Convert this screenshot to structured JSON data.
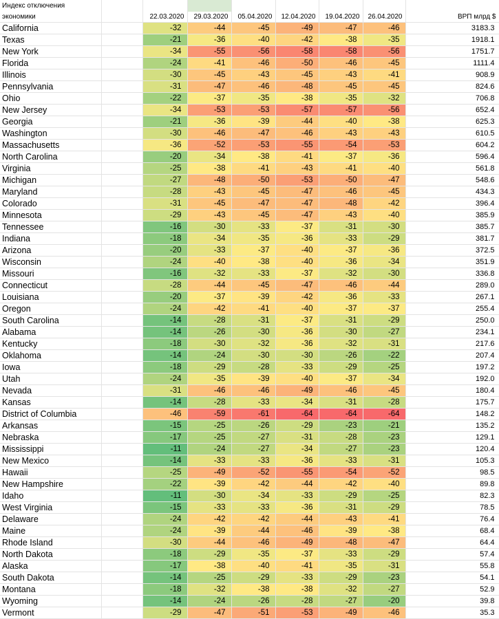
{
  "header": {
    "title_line1": "Индекс отключения",
    "title_line2": "экономики",
    "dates": [
      "22.03.2020",
      "29.03.2020",
      "05.04.2020",
      "12.04.2020",
      "19.04.2020",
      "26.04.2020"
    ],
    "gdp_label": "ВРП млрд $"
  },
  "rows": [
    {
      "state": "California",
      "values": [
        -32,
        -44,
        -45,
        -49,
        -47,
        -46
      ],
      "gdp": "3183.3"
    },
    {
      "state": "Texas",
      "values": [
        -21,
        -36,
        -40,
        -42,
        -38,
        -35
      ],
      "gdp": "1918.1"
    },
    {
      "state": "New York",
      "values": [
        -34,
        -55,
        -56,
        -58,
        -58,
        -56
      ],
      "gdp": "1751.7"
    },
    {
      "state": "Florida",
      "values": [
        -24,
        -41,
        -46,
        -50,
        -46,
        -45
      ],
      "gdp": "1111.4"
    },
    {
      "state": "Illinois",
      "values": [
        -30,
        -45,
        -43,
        -45,
        -43,
        -41
      ],
      "gdp": "908.9"
    },
    {
      "state": "Pennsylvania",
      "values": [
        -31,
        -47,
        -46,
        -48,
        -45,
        -45
      ],
      "gdp": "824.6"
    },
    {
      "state": "Ohio",
      "values": [
        -22,
        -37,
        -35,
        -38,
        -35,
        -32
      ],
      "gdp": "706.8"
    },
    {
      "state": "New Jersey",
      "values": [
        -34,
        -53,
        -53,
        -57,
        -57,
        -56
      ],
      "gdp": "652.4"
    },
    {
      "state": "Georgia",
      "values": [
        -21,
        -36,
        -39,
        -44,
        -40,
        -38
      ],
      "gdp": "625.3"
    },
    {
      "state": "Washington",
      "values": [
        -30,
        -46,
        -47,
        -46,
        -43,
        -43
      ],
      "gdp": "610.5"
    },
    {
      "state": "Massachusetts",
      "values": [
        -36,
        -52,
        -53,
        -55,
        -54,
        -53
      ],
      "gdp": "604.2"
    },
    {
      "state": "North Carolina",
      "values": [
        -20,
        -34,
        -38,
        -41,
        -37,
        -36
      ],
      "gdp": "596.4"
    },
    {
      "state": "Virginia",
      "values": [
        -25,
        -38,
        -41,
        -43,
        -41,
        -40
      ],
      "gdp": "561.8"
    },
    {
      "state": "Michigan",
      "values": [
        -27,
        -48,
        -50,
        -53,
        -50,
        -47
      ],
      "gdp": "548.6"
    },
    {
      "state": "Maryland",
      "values": [
        -28,
        -43,
        -45,
        -47,
        -46,
        -45
      ],
      "gdp": "434.3"
    },
    {
      "state": "Colorado",
      "values": [
        -31,
        -45,
        -47,
        -47,
        -48,
        -42
      ],
      "gdp": "396.4"
    },
    {
      "state": "Minnesota",
      "values": [
        -29,
        -43,
        -45,
        -47,
        -43,
        -40
      ],
      "gdp": "385.9"
    },
    {
      "state": "Tennessee",
      "values": [
        -16,
        -30,
        -33,
        -37,
        -31,
        -30
      ],
      "gdp": "385.7"
    },
    {
      "state": "Indiana",
      "values": [
        -18,
        -34,
        -35,
        -36,
        -33,
        -29
      ],
      "gdp": "381.7"
    },
    {
      "state": "Arizona",
      "values": [
        -20,
        -33,
        -37,
        -40,
        -37,
        -36
      ],
      "gdp": "372.5"
    },
    {
      "state": "Wisconsin",
      "values": [
        -24,
        -40,
        -38,
        -40,
        -36,
        -34
      ],
      "gdp": "351.9"
    },
    {
      "state": "Missouri",
      "values": [
        -16,
        -32,
        -33,
        -37,
        -32,
        -30
      ],
      "gdp": "336.8"
    },
    {
      "state": "Connecticut",
      "values": [
        -28,
        -44,
        -45,
        -47,
        -46,
        -44
      ],
      "gdp": "289.0"
    },
    {
      "state": "Louisiana",
      "values": [
        -20,
        -37,
        -39,
        -42,
        -36,
        -33
      ],
      "gdp": "267.1"
    },
    {
      "state": "Oregon",
      "values": [
        -24,
        -42,
        -41,
        -40,
        -37,
        -37
      ],
      "gdp": "255.4"
    },
    {
      "state": "South Carolina",
      "values": [
        -14,
        -28,
        -31,
        -37,
        -31,
        -29
      ],
      "gdp": "250.0"
    },
    {
      "state": "Alabama",
      "values": [
        -14,
        -26,
        -30,
        -36,
        -30,
        -27
      ],
      "gdp": "234.1"
    },
    {
      "state": "Kentucky",
      "values": [
        -18,
        -30,
        -32,
        -36,
        -32,
        -31
      ],
      "gdp": "217.6"
    },
    {
      "state": "Oklahoma",
      "values": [
        -14,
        -24,
        -30,
        -30,
        -26,
        -22
      ],
      "gdp": "207.4"
    },
    {
      "state": "Iowa",
      "values": [
        -18,
        -29,
        -28,
        -33,
        -29,
        -25
      ],
      "gdp": "197.2"
    },
    {
      "state": "Utah",
      "values": [
        -24,
        -35,
        -39,
        -40,
        -37,
        -34
      ],
      "gdp": "192.0"
    },
    {
      "state": "Nevada",
      "values": [
        -31,
        -46,
        -46,
        -49,
        -46,
        -45
      ],
      "gdp": "180.4"
    },
    {
      "state": "Kansas",
      "values": [
        -14,
        -28,
        -33,
        -34,
        -31,
        -28
      ],
      "gdp": "175.7"
    },
    {
      "state": "District of Columbia",
      "values": [
        -46,
        -59,
        -61,
        -64,
        -64,
        -64
      ],
      "gdp": "148.2"
    },
    {
      "state": "Arkansas",
      "values": [
        -15,
        -25,
        -26,
        -29,
        -23,
        -21
      ],
      "gdp": "135.2"
    },
    {
      "state": "Nebraska",
      "values": [
        -17,
        -25,
        -27,
        -31,
        -28,
        -23
      ],
      "gdp": "129.1"
    },
    {
      "state": "Mississippi",
      "values": [
        -11,
        -24,
        -27,
        -34,
        -27,
        -23
      ],
      "gdp": "120.4"
    },
    {
      "state": "New Mexico",
      "values": [
        -14,
        -33,
        -33,
        -36,
        -33,
        -31
      ],
      "gdp": "105.3"
    },
    {
      "state": "Hawaii",
      "values": [
        -25,
        -49,
        -52,
        -55,
        -54,
        -52
      ],
      "gdp": "98.5"
    },
    {
      "state": "New Hampshire",
      "values": [
        -22,
        -39,
        -42,
        -44,
        -42,
        -40
      ],
      "gdp": "89.8"
    },
    {
      "state": "Idaho",
      "values": [
        -11,
        -30,
        -34,
        -33,
        -29,
        -25
      ],
      "gdp": "82.3"
    },
    {
      "state": "West Virginia",
      "values": [
        -15,
        -33,
        -33,
        -36,
        -31,
        -29
      ],
      "gdp": "78.5"
    },
    {
      "state": "Delaware",
      "values": [
        -24,
        -42,
        -42,
        -44,
        -43,
        -41
      ],
      "gdp": "76.4"
    },
    {
      "state": "Maine",
      "values": [
        -24,
        -39,
        -44,
        -46,
        -39,
        -38
      ],
      "gdp": "68.4"
    },
    {
      "state": "Rhode Island",
      "values": [
        -30,
        -44,
        -46,
        -49,
        -48,
        -47
      ],
      "gdp": "64.4"
    },
    {
      "state": "North Dakota",
      "values": [
        -18,
        -29,
        -35,
        -37,
        -33,
        -29
      ],
      "gdp": "57.4"
    },
    {
      "state": "Alaska",
      "values": [
        -17,
        -38,
        -40,
        -41,
        -35,
        -31
      ],
      "gdp": "55.8"
    },
    {
      "state": "South Dakota",
      "values": [
        -14,
        -25,
        -29,
        -33,
        -29,
        -23
      ],
      "gdp": "54.1"
    },
    {
      "state": "Montana",
      "values": [
        -18,
        -32,
        -38,
        -38,
        -32,
        -27
      ],
      "gdp": "52.9"
    },
    {
      "state": "Wyoming",
      "values": [
        -14,
        -24,
        -26,
        -28,
        -27,
        -20
      ],
      "gdp": "39.8"
    },
    {
      "state": "Vermont",
      "values": [
        -29,
        -47,
        -51,
        -53,
        -49,
        -46
      ],
      "gdp": "35.3"
    }
  ],
  "color_scale": {
    "low_color": "#63be7b",
    "mid_color": "#ffeb84",
    "high_color": "#f8696b",
    "low_value": -11,
    "mid_value": -37.5,
    "high_value": -64
  }
}
